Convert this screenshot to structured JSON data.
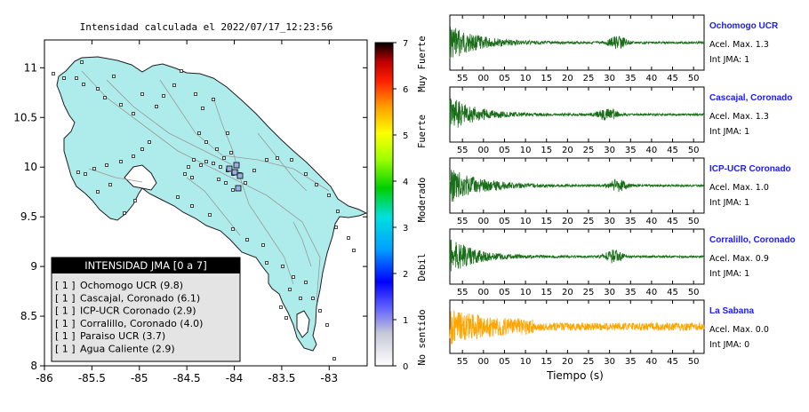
{
  "map": {
    "title": "Intensidad calculada el 2022/07/17_12:23:56",
    "x_ticks": [
      "-86",
      "-85.5",
      "-85",
      "-84.5",
      "-84",
      "-83.5",
      "-83"
    ],
    "y_ticks": [
      "11",
      "10.5",
      "10",
      "9.5",
      "9",
      "8.5",
      "8"
    ],
    "land_color": "#aeecec",
    "legend": {
      "title": "INTENSIDAD JMA [0 a 7]",
      "items": [
        {
          "jma": "[ 1 ]",
          "label": "Ochomogo UCR (9.8)"
        },
        {
          "jma": "[ 1 ]",
          "label": "Cascajal, Coronado (6.1)"
        },
        {
          "jma": "[ 1 ]",
          "label": "ICP-UCR Coronado (2.9)"
        },
        {
          "jma": "[ 1 ]",
          "label": "Corralillo, Coronado (4.0)"
        },
        {
          "jma": "[ 1 ]",
          "label": "Paraiso UCR (3.7)"
        },
        {
          "jma": "[ 1 ]",
          "label": "Agua Caliente (2.9)"
        }
      ]
    }
  },
  "colorbar": {
    "ticks": [
      "0",
      "1",
      "2",
      "3",
      "4",
      "5",
      "6",
      "7"
    ],
    "labels": [
      "No sentido",
      "Debil",
      "Moderado",
      "Fuerte",
      "Muy Fuerte"
    ]
  },
  "waveform_axis": {
    "ticks": [
      "55",
      "00",
      "05",
      "10",
      "15",
      "20",
      "25",
      "30",
      "35",
      "40",
      "45",
      "50"
    ],
    "xlabel": "Tiempo (s)"
  },
  "chart_data": [
    {
      "type": "line",
      "title": "Intensidad calculada el 2022/07/17_12:23:56",
      "colorbar_range": [
        0,
        7
      ],
      "xlabel": "",
      "ylabel": "",
      "xlim": [
        -86,
        -82.5
      ],
      "ylim": [
        8,
        11.3
      ]
    },
    {
      "type": "line",
      "series": [
        {
          "name": "Ochomogo UCR",
          "color": "#1a6e1a",
          "pga": "1.3",
          "jma": "1",
          "event_time": 32,
          "decay": 1.0
        },
        {
          "name": "Cascajal, Coronado",
          "color": "#1a6e1a",
          "pga": "1.3",
          "jma": "1",
          "event_time": 29.5,
          "decay": 0.9
        },
        {
          "name": "ICP-UCR Coronado",
          "color": "#1a6e1a",
          "pga": "1.0",
          "jma": "1",
          "event_time": 32,
          "decay": 1.2
        },
        {
          "name": "Corralillo, Coronado",
          "color": "#1a6e1a",
          "pga": "0.9",
          "jma": "1",
          "event_time": 31,
          "decay": 0.7
        },
        {
          "name": "La Sabana",
          "color": "#ffa500",
          "pga": "0.0",
          "jma": "0",
          "event_time": 0,
          "decay": 0.4
        }
      ],
      "x_ticks": [
        "55",
        "00",
        "05",
        "10",
        "15",
        "20",
        "25",
        "30",
        "35",
        "40",
        "45",
        "50"
      ],
      "xlabel": "Tiempo (s)"
    }
  ],
  "stations": [
    {
      "name": "Ochomogo UCR",
      "pga_label": "Acel. Max. 1.3",
      "jma_label": "Int JMA: 1"
    },
    {
      "name": "Cascajal, Coronado",
      "pga_label": "Acel. Max. 1.3",
      "jma_label": "Int JMA: 1"
    },
    {
      "name": "ICP-UCR Coronado",
      "pga_label": "Acel. Max. 1.0",
      "jma_label": "Int JMA: 1"
    },
    {
      "name": "Corralillo, Coronado",
      "pga_label": "Acel. Max. 0.9",
      "jma_label": "Int JMA: 1"
    },
    {
      "name": "La Sabana",
      "pga_label": "Acel. Max. 0.0",
      "jma_label": "Int JMA: 0"
    }
  ]
}
